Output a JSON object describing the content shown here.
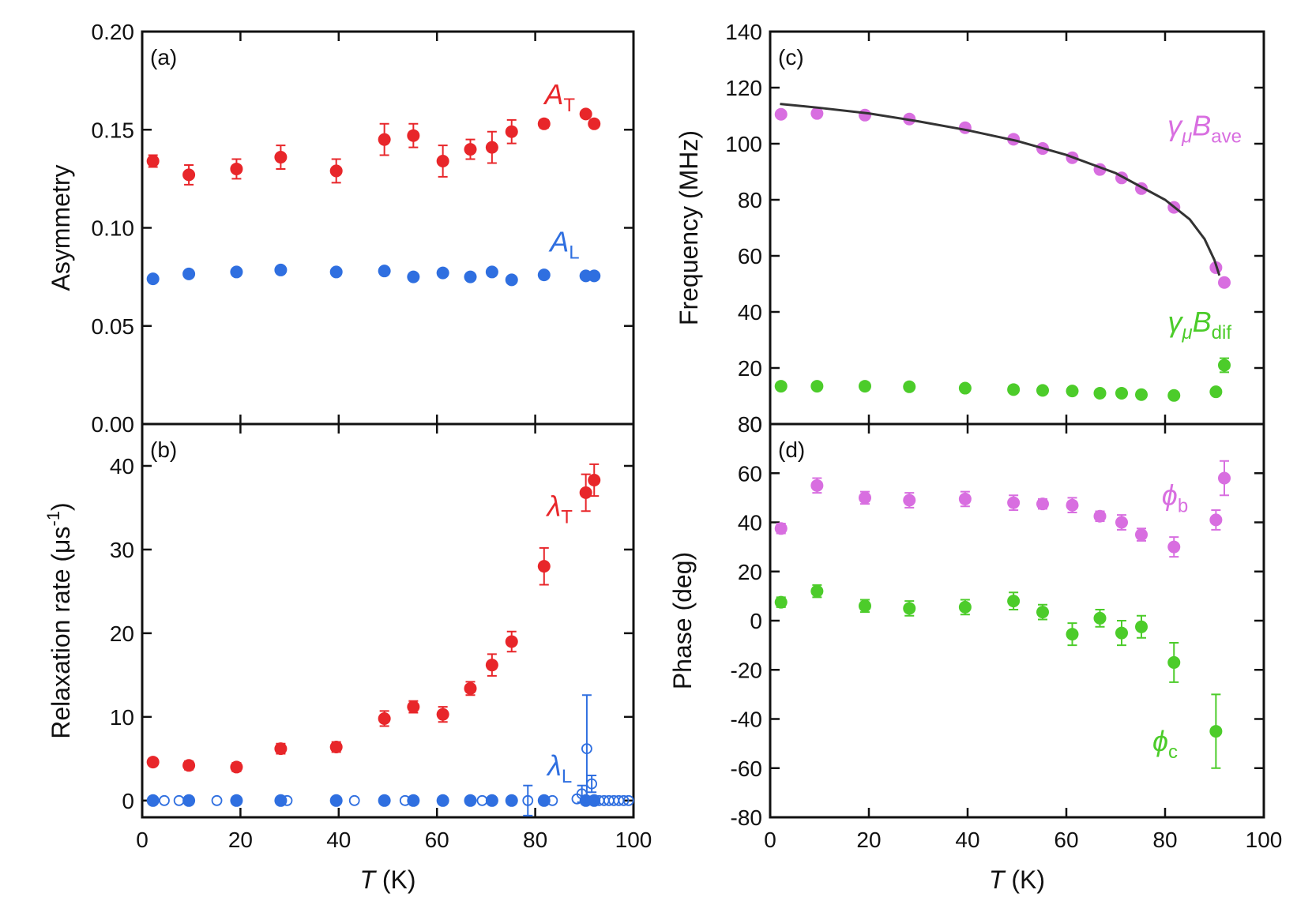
{
  "chart_data": [
    {
      "type": "scatter",
      "panel_label": "(a)",
      "ylabel_parts": [
        {
          "text": "Asymmetry"
        }
      ],
      "xlim": [
        0,
        100
      ],
      "xticks": [
        0,
        20,
        40,
        60,
        80,
        100
      ],
      "xtick_labels": false,
      "ylim": [
        0,
        0.2
      ],
      "yticks": [
        {
          "value": 0,
          "label": "0.00"
        },
        {
          "value": 0.05,
          "label": "0.05"
        },
        {
          "value": 0.1,
          "label": "0.10"
        },
        {
          "value": 0.15,
          "label": "0.15"
        },
        {
          "value": 0.2,
          "label": "0.20"
        }
      ],
      "series": [
        {
          "label_parts": [
            {
              "text": "A",
              "italic": true
            },
            {
              "text": "T",
              "sub": true
            }
          ],
          "color": "#e8262a",
          "marker": "filled",
          "x": [
            2.2,
            9.5,
            19.2,
            28.2,
            39.5,
            49.3,
            55.2,
            61.2,
            66.8,
            71.2,
            75.2,
            81.8,
            90.3,
            92.0
          ],
          "values": [
            0.134,
            0.127,
            0.13,
            0.136,
            0.129,
            0.145,
            0.147,
            0.134,
            0.14,
            0.141,
            0.149,
            0.153,
            0.158,
            0.153
          ],
          "errors": [
            0.003,
            0.005,
            0.005,
            0.006,
            0.006,
            0.008,
            0.006,
            0.008,
            0.005,
            0.008,
            0.006,
            0.002,
            0.001,
            0.001
          ]
        },
        {
          "label_parts": [
            {
              "text": "A",
              "italic": true
            },
            {
              "text": "L",
              "sub": true
            }
          ],
          "color": "#2f6fe0",
          "marker": "filled",
          "x": [
            2.2,
            9.5,
            19.2,
            28.2,
            39.5,
            49.3,
            55.2,
            61.2,
            66.8,
            71.2,
            75.2,
            81.8,
            90.3,
            92.0
          ],
          "values": [
            0.074,
            0.0765,
            0.0775,
            0.0785,
            0.0775,
            0.078,
            0.075,
            0.077,
            0.075,
            0.0775,
            0.0735,
            0.076,
            0.0755,
            0.0755
          ]
        }
      ]
    },
    {
      "type": "scatter",
      "panel_label": "(b)",
      "ylabel_parts": [
        {
          "text": "Relaxation rate  (μs"
        },
        {
          "text": "-1",
          "sup": true
        },
        {
          "text": ")"
        }
      ],
      "xlabel_parts": [
        {
          "text": "T",
          "italic": true
        },
        {
          "text": " (K)"
        }
      ],
      "xlim": [
        0,
        100
      ],
      "xticks": [
        0,
        20,
        40,
        60,
        80,
        100
      ],
      "xtick_labels": true,
      "ylim": [
        -2,
        45
      ],
      "yticks": [
        0,
        10,
        20,
        30,
        40
      ],
      "series": [
        {
          "label_parts": [
            {
              "text": "λ",
              "italic": true
            },
            {
              "text": "T",
              "sub": true
            }
          ],
          "color": "#e8262a",
          "marker": "filled",
          "x": [
            2.2,
            9.5,
            19.2,
            28.2,
            39.5,
            49.3,
            55.2,
            61.2,
            66.8,
            71.2,
            75.2,
            81.8,
            90.3,
            92.0
          ],
          "values": [
            4.6,
            4.2,
            4.0,
            6.2,
            6.4,
            9.8,
            11.2,
            10.3,
            13.4,
            16.2,
            19.0,
            28.0,
            36.8,
            38.3
          ],
          "errors": [
            0.4,
            0.5,
            0.5,
            0.6,
            0.6,
            0.9,
            0.7,
            0.9,
            0.8,
            1.3,
            1.2,
            2.2,
            2.2,
            1.9
          ]
        },
        {
          "label_parts": [
            {
              "text": "λ",
              "italic": true
            },
            {
              "text": "L",
              "sub": true
            }
          ],
          "color": "#2f6fe0",
          "marker": "filled",
          "x": [
            2.2,
            9.5,
            19.2,
            28.2,
            39.5,
            49.3,
            55.2,
            61.2,
            66.8,
            71.2,
            75.2,
            81.8,
            90.3,
            92.0
          ],
          "values": [
            0,
            0,
            0,
            0,
            0,
            0,
            0,
            0,
            0,
            0,
            0,
            0,
            0,
            0
          ]
        },
        {
          "color": "#2f6fe0",
          "marker": "open",
          "x": [
            4.5,
            7.5,
            15.2,
            29.5,
            43.2,
            53.5,
            69.2,
            78.5,
            83.5,
            88.5,
            89.5,
            90.5,
            91.5,
            93,
            94,
            95,
            96,
            97,
            98,
            99
          ],
          "values": [
            0,
            0,
            0,
            0,
            0,
            0,
            0,
            0,
            0,
            0.2,
            0.8,
            6.2,
            2,
            0,
            0,
            0,
            0,
            0,
            0,
            0
          ],
          "errors": [
            null,
            null,
            null,
            null,
            null,
            null,
            null,
            1.8,
            null,
            null,
            1,
            6.4,
            1,
            null,
            null,
            null,
            null,
            null,
            null,
            null
          ]
        }
      ]
    },
    {
      "type": "scatter",
      "panel_label": "(c)",
      "ylabel_parts": [
        {
          "text": "Frequency (MHz)"
        }
      ],
      "xlim": [
        0,
        100
      ],
      "xticks": [
        0,
        20,
        40,
        60,
        80,
        100
      ],
      "xtick_labels": false,
      "ylim": [
        0,
        140
      ],
      "yticks": [
        0,
        20,
        40,
        60,
        80,
        100,
        120,
        140
      ],
      "series": [
        {
          "label_parts": [
            {
              "text": "γ",
              "italic": true
            },
            {
              "text": "μ",
              "sub": true,
              "italic": true
            },
            {
              "text": "B",
              "italic": true
            },
            {
              "text": "ave",
              "sub": true
            }
          ],
          "color": "#d86ee0",
          "marker": "filled",
          "x": [
            2.2,
            9.5,
            19.2,
            28.2,
            39.5,
            49.3,
            55.2,
            61.2,
            66.8,
            71.2,
            75.2,
            81.8,
            90.3,
            92.0
          ],
          "values": [
            110.5,
            110.8,
            110.2,
            108.8,
            105.7,
            101.6,
            98.3,
            95.0,
            90.8,
            87.8,
            84.0,
            77.3,
            55.8,
            50.5
          ]
        },
        {
          "label_parts": [
            {
              "text": "γ",
              "italic": true
            },
            {
              "text": "μ",
              "sub": true,
              "italic": true
            },
            {
              "text": "B",
              "italic": true
            },
            {
              "text": "dif",
              "sub": true
            }
          ],
          "color": "#4ccc2a",
          "marker": "filled",
          "x": [
            2.2,
            9.5,
            19.2,
            28.2,
            39.5,
            49.3,
            55.2,
            61.2,
            66.8,
            71.2,
            75.2,
            81.8,
            90.3,
            92.0
          ],
          "values": [
            13.5,
            13.5,
            13.5,
            13.3,
            12.8,
            12.3,
            12.0,
            11.8,
            11.0,
            11.0,
            10.5,
            10.2,
            11.5,
            21.0
          ],
          "errors": [
            0.5,
            0.5,
            0.5,
            0.5,
            0.5,
            0.5,
            0.5,
            0.5,
            0.5,
            0.5,
            0.5,
            0.5,
            0.8,
            2.5
          ]
        },
        {
          "color": "#333333",
          "marker": "line",
          "x": [
            2,
            10,
            20,
            30,
            40,
            50,
            60,
            70,
            80,
            85,
            88,
            90,
            91
          ],
          "values": [
            114.2,
            112.8,
            110.8,
            108,
            104.8,
            101,
            96,
            89.5,
            80,
            73,
            66,
            58.5,
            53
          ]
        }
      ]
    },
    {
      "type": "scatter",
      "panel_label": "(d)",
      "ylabel_parts": [
        {
          "text": "Phase (deg)"
        }
      ],
      "xlabel_parts": [
        {
          "text": "T",
          "italic": true
        },
        {
          "text": " (K)"
        }
      ],
      "xlim": [
        0,
        100
      ],
      "xticks": [
        0,
        20,
        40,
        60,
        80,
        100
      ],
      "xtick_labels": true,
      "ylim": [
        -80,
        80
      ],
      "yticks": [
        -80,
        -60,
        -40,
        -20,
        0,
        20,
        40,
        60,
        80
      ],
      "series": [
        {
          "label_parts": [
            {
              "text": "ϕ",
              "italic": true
            },
            {
              "text": "b",
              "sub": true
            }
          ],
          "color": "#d86ee0",
          "marker": "filled",
          "x": [
            2.2,
            9.5,
            19.2,
            28.2,
            39.5,
            49.3,
            55.2,
            61.2,
            66.8,
            71.2,
            75.2,
            81.8,
            90.3,
            92.0
          ],
          "values": [
            37.5,
            55,
            50,
            49,
            49.5,
            48,
            47.5,
            47,
            42.5,
            40,
            35,
            30,
            41,
            58
          ],
          "errors": [
            2,
            3,
            2.5,
            3,
            3,
            3,
            2,
            3,
            2,
            3,
            2.5,
            4,
            4,
            7
          ]
        },
        {
          "label_parts": [
            {
              "text": "ϕ",
              "italic": true
            },
            {
              "text": "c",
              "sub": true
            }
          ],
          "color": "#4ccc2a",
          "marker": "filled",
          "x": [
            2.2,
            9.5,
            19.2,
            28.2,
            39.5,
            49.3,
            55.2,
            61.2,
            66.8,
            71.2,
            75.2,
            81.8,
            90.3
          ],
          "values": [
            7.5,
            12,
            6,
            5,
            5.5,
            8,
            3.5,
            -5.5,
            1,
            -5,
            -2.5,
            -17,
            -45
          ],
          "errors": [
            2,
            2.5,
            2.5,
            3,
            3,
            3.5,
            3,
            4.5,
            3.5,
            5,
            4.5,
            8,
            15
          ]
        }
      ]
    }
  ]
}
